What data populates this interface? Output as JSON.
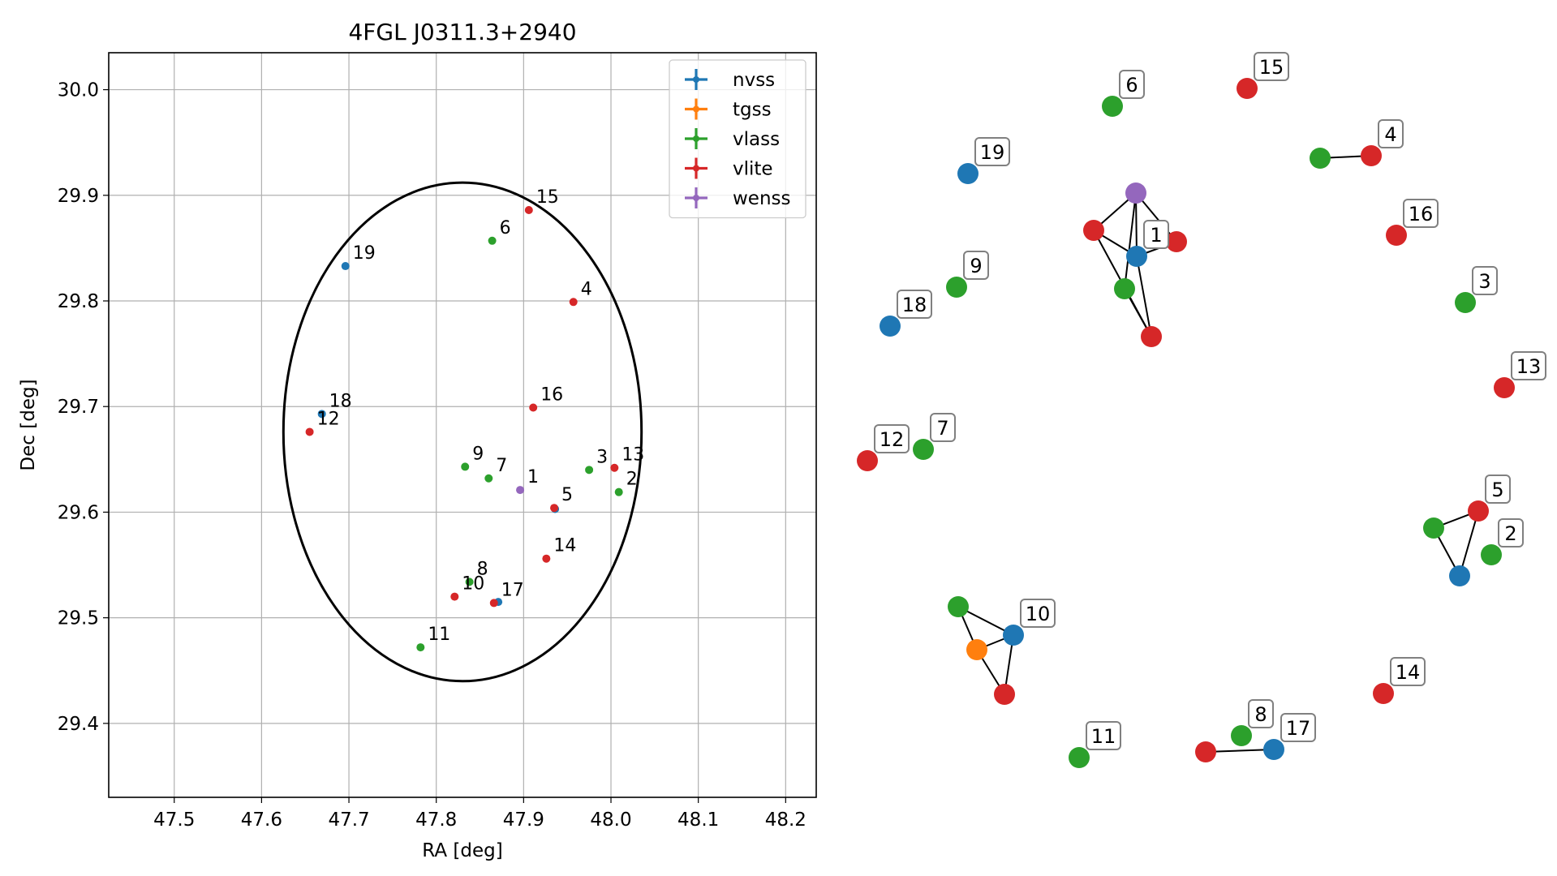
{
  "chart_data": [
    {
      "type": "scatter",
      "title": "4FGL J0311.3+2940",
      "xlabel": "RA [deg]",
      "ylabel": "Dec [deg]",
      "xlim": [
        47.425,
        48.235
      ],
      "ylim": [
        29.33,
        30.035
      ],
      "xticks": [
        "47.5",
        "47.6",
        "47.7",
        "47.8",
        "47.9",
        "48.0",
        "48.1",
        "48.2"
      ],
      "yticks": [
        "29.4",
        "29.5",
        "29.6",
        "29.7",
        "29.8",
        "29.9",
        "30.0"
      ],
      "grid": true,
      "legend_position": "upper right",
      "series": [
        {
          "name": "nvss",
          "color": "#1f77b4",
          "points": [
            {
              "x": 47.696,
              "y": 29.833,
              "label": "19"
            },
            {
              "x": 47.669,
              "y": 29.693,
              "label": "18"
            },
            {
              "x": 47.936,
              "y": 29.603,
              "label": ""
            },
            {
              "x": 47.871,
              "y": 29.515,
              "label": ""
            }
          ]
        },
        {
          "name": "tgss",
          "color": "#ff7f0e",
          "points": []
        },
        {
          "name": "vlass",
          "color": "#2ca02c",
          "points": [
            {
              "x": 47.864,
              "y": 29.857,
              "label": "6"
            },
            {
              "x": 47.833,
              "y": 29.643,
              "label": "9"
            },
            {
              "x": 47.86,
              "y": 29.632,
              "label": "7"
            },
            {
              "x": 47.975,
              "y": 29.64,
              "label": "3"
            },
            {
              "x": 48.009,
              "y": 29.619,
              "label": "2"
            },
            {
              "x": 47.838,
              "y": 29.534,
              "label": "8"
            },
            {
              "x": 47.782,
              "y": 29.472,
              "label": "11"
            }
          ]
        },
        {
          "name": "vlite",
          "color": "#d62728",
          "points": [
            {
              "x": 47.906,
              "y": 29.886,
              "label": "15"
            },
            {
              "x": 47.957,
              "y": 29.799,
              "label": "4"
            },
            {
              "x": 47.911,
              "y": 29.699,
              "label": "16"
            },
            {
              "x": 47.655,
              "y": 29.676,
              "label": "12"
            },
            {
              "x": 48.004,
              "y": 29.642,
              "label": "13"
            },
            {
              "x": 47.935,
              "y": 29.604,
              "label": "5"
            },
            {
              "x": 47.926,
              "y": 29.556,
              "label": "14"
            },
            {
              "x": 47.821,
              "y": 29.52,
              "label": "10"
            },
            {
              "x": 47.866,
              "y": 29.514,
              "label": "17"
            }
          ]
        },
        {
          "name": "wenss",
          "color": "#9467bd",
          "points": [
            {
              "x": 47.896,
              "y": 29.621,
              "label": "1"
            }
          ]
        }
      ],
      "ellipse": {
        "center_x": 47.83,
        "center_y": 29.676,
        "semi_axis_ra_deg": 0.205,
        "semi_axis_dec_deg": 0.236,
        "color": "#000000"
      }
    },
    {
      "type": "network",
      "nodes": [
        {
          "id": "wenss-1",
          "color": "#9467bd",
          "label": ""
        },
        {
          "id": "vlite-1a",
          "color": "#d62728",
          "label": ""
        },
        {
          "id": "nvss-1",
          "color": "#1f77b4",
          "label": "1"
        },
        {
          "id": "vlite-1b",
          "color": "#d62728",
          "label": ""
        },
        {
          "id": "vlass-1",
          "color": "#2ca02c",
          "label": ""
        },
        {
          "id": "vlite-1c",
          "color": "#d62728",
          "label": ""
        },
        {
          "id": "vlass-6",
          "color": "#2ca02c",
          "label": "6"
        },
        {
          "id": "vlite-15",
          "color": "#d62728",
          "label": "15"
        },
        {
          "id": "nvss-19",
          "color": "#1f77b4",
          "label": "19"
        },
        {
          "id": "vlass-4",
          "color": "#2ca02c",
          "label": ""
        },
        {
          "id": "vlite-4",
          "color": "#d62728",
          "label": "4"
        },
        {
          "id": "vlite-16",
          "color": "#d62728",
          "label": "16"
        },
        {
          "id": "vlass-9",
          "color": "#2ca02c",
          "label": "9"
        },
        {
          "id": "nvss-18",
          "color": "#1f77b4",
          "label": "18"
        },
        {
          "id": "vlass-3",
          "color": "#2ca02c",
          "label": "3"
        },
        {
          "id": "vlite-13",
          "color": "#d62728",
          "label": "13"
        },
        {
          "id": "vlite-12",
          "color": "#d62728",
          "label": "12"
        },
        {
          "id": "vlass-7",
          "color": "#2ca02c",
          "label": "7"
        },
        {
          "id": "vlite-5",
          "color": "#d62728",
          "label": "5"
        },
        {
          "id": "vlass-5",
          "color": "#2ca02c",
          "label": ""
        },
        {
          "id": "nvss-5",
          "color": "#1f77b4",
          "label": ""
        },
        {
          "id": "vlass-2",
          "color": "#2ca02c",
          "label": "2"
        },
        {
          "id": "vlass-10",
          "color": "#2ca02c",
          "label": ""
        },
        {
          "id": "tgss-10",
          "color": "#ff7f0e",
          "label": ""
        },
        {
          "id": "nvss-10",
          "color": "#1f77b4",
          "label": "10"
        },
        {
          "id": "vlite-10",
          "color": "#d62728",
          "label": ""
        },
        {
          "id": "vlite-14",
          "color": "#d62728",
          "label": "14"
        },
        {
          "id": "vlass-11",
          "color": "#2ca02c",
          "label": "11"
        },
        {
          "id": "vlite-17",
          "color": "#d62728",
          "label": ""
        },
        {
          "id": "vlass-8",
          "color": "#2ca02c",
          "label": "8"
        },
        {
          "id": "nvss-17",
          "color": "#1f77b4",
          "label": "17"
        }
      ],
      "edges": [
        [
          "wenss-1",
          "vlite-1a"
        ],
        [
          "wenss-1",
          "nvss-1"
        ],
        [
          "wenss-1",
          "vlite-1b"
        ],
        [
          "wenss-1",
          "vlass-1"
        ],
        [
          "vlite-1a",
          "nvss-1"
        ],
        [
          "vlite-1a",
          "vlite-1c"
        ],
        [
          "nvss-1",
          "vlite-1b"
        ],
        [
          "nvss-1",
          "vlite-1c"
        ],
        [
          "vlass-1",
          "vlite-1c"
        ],
        [
          "vlass-4",
          "vlite-4"
        ],
        [
          "vlite-5",
          "vlass-5"
        ],
        [
          "vlite-5",
          "nvss-5"
        ],
        [
          "vlass-5",
          "nvss-5"
        ],
        [
          "vlass-10",
          "tgss-10"
        ],
        [
          "vlass-10",
          "nvss-10"
        ],
        [
          "tgss-10",
          "nvss-10"
        ],
        [
          "tgss-10",
          "vlite-10"
        ],
        [
          "nvss-10",
          "vlite-10"
        ],
        [
          "vlite-17",
          "nvss-17"
        ]
      ]
    }
  ]
}
